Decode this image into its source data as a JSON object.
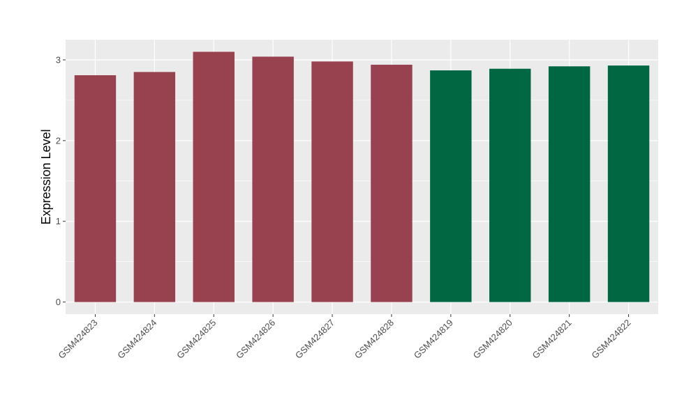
{
  "chart_data": {
    "type": "bar",
    "categories": [
      "GSM424823",
      "GSM424824",
      "GSM424825",
      "GSM424826",
      "GSM424827",
      "GSM424828",
      "GSM424819",
      "GSM424820",
      "GSM424821",
      "GSM424822"
    ],
    "values": [
      2.81,
      2.85,
      3.1,
      3.04,
      2.98,
      2.94,
      2.87,
      2.89,
      2.92,
      2.93
    ],
    "bar_colors": [
      "#99424f",
      "#99424f",
      "#99424f",
      "#99424f",
      "#99424f",
      "#99424f",
      "#006743",
      "#006743",
      "#006743",
      "#006743"
    ],
    "title": "",
    "xlabel": "",
    "ylabel": "Expression Level",
    "ylim": [
      -0.15,
      3.25
    ],
    "yticks": [
      0,
      1,
      2,
      3
    ],
    "grid": true,
    "legend": "none",
    "panel_background": "#ebebeb",
    "grid_color": "#ffffff"
  }
}
